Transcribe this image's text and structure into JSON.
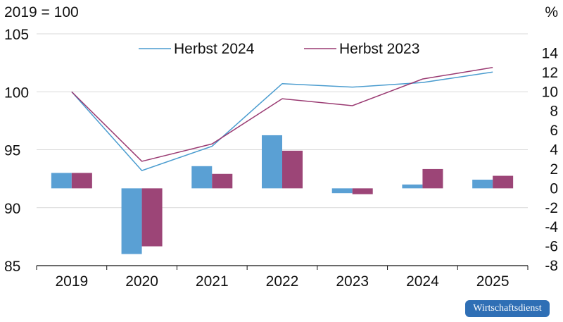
{
  "chart_data": {
    "type": "bar+line",
    "left_axis_label": "2019 = 100",
    "right_axis_label": "%",
    "categories": [
      "2019",
      "2020",
      "2021",
      "2022",
      "2023",
      "2024",
      "2025"
    ],
    "left_axis": {
      "ylim": [
        85,
        105
      ],
      "ticks": [
        85,
        90,
        95,
        100,
        105
      ]
    },
    "right_axis": {
      "ylim": [
        -8,
        16
      ],
      "ticks": [
        -8,
        -6,
        -4,
        -2,
        0,
        2,
        4,
        6,
        8,
        10,
        12,
        14
      ]
    },
    "lines": [
      {
        "name": "Herbst 2024",
        "color": "#4a9ccf",
        "axis": "left",
        "values": [
          100.0,
          93.2,
          95.3,
          100.7,
          100.4,
          100.8,
          101.7
        ]
      },
      {
        "name": "Herbst 2023",
        "color": "#9a3a72",
        "axis": "left",
        "values": [
          100.0,
          94.0,
          95.5,
          99.4,
          98.8,
          101.1,
          102.1
        ]
      }
    ],
    "bars": [
      {
        "name": "Herbst 2024",
        "color": "#5aa0d4",
        "axis": "right",
        "values": [
          1.6,
          -6.8,
          2.3,
          5.5,
          -0.5,
          0.4,
          0.9
        ]
      },
      {
        "name": "Herbst 2023",
        "color": "#9c4577",
        "axis": "right",
        "values": [
          1.6,
          -6.0,
          1.5,
          3.9,
          -0.6,
          2.0,
          1.3
        ]
      }
    ],
    "legend": [
      "Herbst 2024",
      "Herbst 2023"
    ],
    "legend_position": "top-center",
    "grid": "horizontal"
  },
  "badge": {
    "text": "Wirtschaftsdienst"
  }
}
